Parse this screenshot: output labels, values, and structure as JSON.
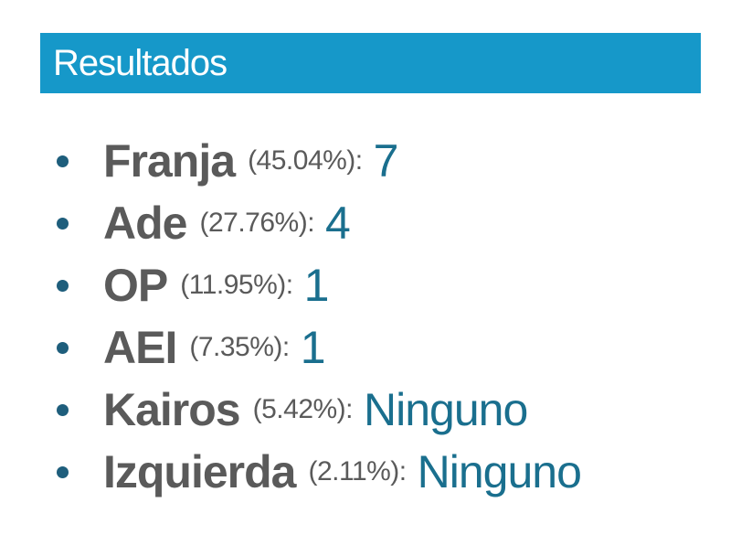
{
  "header": {
    "title": "Resultados"
  },
  "results": [
    {
      "party": "Franja",
      "percent": "(45.04%):",
      "seats": "7"
    },
    {
      "party": "Ade",
      "percent": "(27.76%):",
      "seats": "4"
    },
    {
      "party": "OP",
      "percent": "(11.95%):",
      "seats": "1"
    },
    {
      "party": "AEI",
      "percent": "(7.35%):",
      "seats": "1"
    },
    {
      "party": "Kairos",
      "percent": "(5.42%):",
      "seats": "Ninguno"
    },
    {
      "party": "Izquierda",
      "percent": "(2.11%):",
      "seats": "Ninguno"
    }
  ],
  "colors": {
    "header_bg": "#1698c9",
    "party_text": "#5a5a5a",
    "seats_text": "#1a6f8e",
    "bullet": "#1e5e7c"
  }
}
